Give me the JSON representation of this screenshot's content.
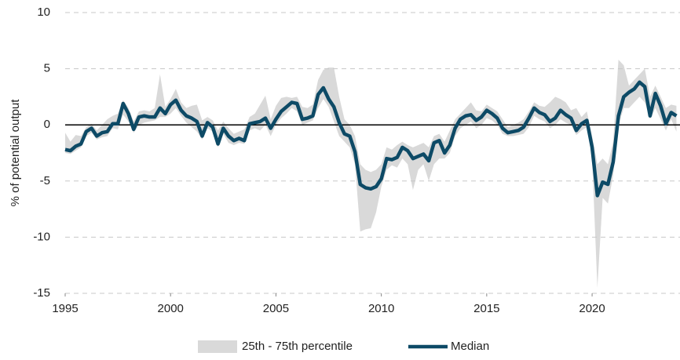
{
  "chart_data": {
    "type": "line",
    "y_label": "% of potential output",
    "x": [
      1995,
      1995.25,
      1995.5,
      1995.75,
      1996,
      1996.25,
      1996.5,
      1996.75,
      1997,
      1997.25,
      1997.5,
      1997.75,
      1998,
      1998.25,
      1998.5,
      1998.75,
      1999,
      1999.25,
      1999.5,
      1999.75,
      2000,
      2000.25,
      2000.5,
      2000.75,
      2001,
      2001.25,
      2001.5,
      2001.75,
      2002,
      2002.25,
      2002.5,
      2002.75,
      2003,
      2003.25,
      2003.5,
      2003.75,
      2004,
      2004.25,
      2004.5,
      2004.75,
      2005,
      2005.25,
      2005.5,
      2005.75,
      2006,
      2006.25,
      2006.5,
      2006.75,
      2007,
      2007.25,
      2007.5,
      2007.75,
      2008,
      2008.25,
      2008.5,
      2008.75,
      2009,
      2009.25,
      2009.5,
      2009.75,
      2010,
      2010.25,
      2010.5,
      2010.75,
      2011,
      2011.25,
      2011.5,
      2011.75,
      2012,
      2012.25,
      2012.5,
      2012.75,
      2013,
      2013.25,
      2013.5,
      2013.75,
      2014,
      2014.25,
      2014.5,
      2014.75,
      2015,
      2015.25,
      2015.5,
      2015.75,
      2016,
      2016.25,
      2016.5,
      2016.75,
      2017,
      2017.25,
      2017.5,
      2017.75,
      2018,
      2018.25,
      2018.5,
      2018.75,
      2019,
      2019.25,
      2019.5,
      2019.75,
      2020,
      2020.25,
      2020.5,
      2020.75,
      2021,
      2021.25,
      2021.5,
      2021.75,
      2022,
      2022.25,
      2022.5,
      2022.75,
      2023,
      2023.25,
      2023.5,
      2023.75,
      2024
    ],
    "band": {
      "name": "25th - 75th percentile",
      "color": "#d9d9d9",
      "low": [
        -2.5,
        -2.6,
        -2.3,
        -2.0,
        -1.0,
        -0.7,
        -1.3,
        -1.1,
        -1.0,
        -0.3,
        -0.4,
        0.9,
        0.3,
        -0.7,
        0.0,
        0.2,
        0.3,
        0.4,
        0.7,
        0.7,
        1.0,
        1.5,
        0.8,
        0.2,
        -0.2,
        -0.6,
        -1.3,
        -0.3,
        -0.6,
        -2.0,
        -0.8,
        -1.6,
        -1.8,
        -1.6,
        -1.7,
        -0.5,
        -0.3,
        -0.5,
        0.0,
        -1.0,
        0.0,
        0.6,
        1.0,
        1.5,
        1.2,
        0.0,
        0.2,
        0.4,
        1.5,
        2.3,
        1.6,
        0.3,
        -1.0,
        -1.5,
        -2.0,
        -3.5,
        -9.5,
        -9.3,
        -9.2,
        -7.8,
        -5.5,
        -4.0,
        -3.6,
        -3.8,
        -3.0,
        -3.5,
        -5.8,
        -4.0,
        -3.5,
        -5.0,
        -3.5,
        -3.0,
        -3.0,
        -2.5,
        -1.0,
        -0.3,
        0.0,
        0.3,
        -0.3,
        0.0,
        0.6,
        0.4,
        0.0,
        -0.8,
        -1.0,
        -1.0,
        -0.9,
        -0.8,
        -0.2,
        0.8,
        0.5,
        0.3,
        -0.3,
        0.0,
        0.5,
        0.2,
        0.0,
        -0.9,
        -0.5,
        -0.2,
        -3.0,
        -14.5,
        -6.5,
        -7.0,
        -4.5,
        0.0,
        1.5,
        1.5,
        2.0,
        2.5,
        2.0,
        0.5,
        1.5,
        0.5,
        -0.5,
        0.5,
        -0.6
      ],
      "high": [
        -0.7,
        -1.5,
        -0.9,
        -1.0,
        -0.2,
        0.1,
        -0.5,
        0.0,
        0.5,
        0.8,
        1.0,
        2.2,
        1.5,
        0.3,
        1.2,
        1.3,
        1.2,
        1.5,
        4.5,
        1.6,
        2.3,
        3.2,
        2.0,
        1.5,
        1.7,
        1.8,
        0.4,
        0.7,
        0.4,
        -0.5,
        0.3,
        -0.3,
        -0.8,
        -0.6,
        -0.4,
        0.7,
        1.0,
        1.8,
        2.6,
        0.5,
        1.7,
        2.4,
        2.5,
        2.4,
        2.5,
        1.6,
        1.5,
        1.8,
        4.0,
        4.9,
        5.1,
        5.1,
        2.5,
        0.5,
        0.0,
        -1.0,
        -3.5,
        -4.0,
        -4.2,
        -4.0,
        -3.5,
        -2.0,
        -2.2,
        -1.8,
        -1.5,
        -1.8,
        -2.0,
        -1.8,
        -1.6,
        -2.0,
        -1.0,
        -0.8,
        -1.5,
        -0.5,
        0.5,
        1.0,
        1.5,
        2.0,
        1.3,
        1.2,
        1.8,
        1.5,
        1.2,
        0.5,
        -0.2,
        0.0,
        0.2,
        0.5,
        1.2,
        2.0,
        1.7,
        1.6,
        2.0,
        2.5,
        2.3,
        2.0,
        1.3,
        1.5,
        0.7,
        1.2,
        -1.0,
        -3.5,
        -3.0,
        -3.5,
        -1.5,
        5.8,
        5.3,
        3.5,
        4.0,
        4.5,
        5.0,
        2.5,
        3.5,
        2.5,
        1.5,
        1.8,
        1.7
      ]
    },
    "series": [
      {
        "name": "Median",
        "color": "#0d4a66",
        "values": [
          -2.2,
          -2.3,
          -1.9,
          -1.7,
          -0.6,
          -0.3,
          -1.0,
          -0.7,
          -0.6,
          0.1,
          0.1,
          1.9,
          1.0,
          -0.4,
          0.7,
          0.8,
          0.7,
          0.7,
          1.5,
          1.0,
          1.8,
          2.2,
          1.3,
          0.8,
          0.6,
          0.3,
          -1.0,
          0.2,
          -0.2,
          -1.7,
          -0.3,
          -1.0,
          -1.4,
          -1.2,
          -1.4,
          0.1,
          0.2,
          0.3,
          0.6,
          -0.3,
          0.5,
          1.2,
          1.6,
          2.0,
          1.9,
          0.5,
          0.6,
          0.8,
          2.7,
          3.3,
          2.3,
          1.6,
          0.2,
          -0.8,
          -1.0,
          -2.4,
          -5.3,
          -5.6,
          -5.7,
          -5.5,
          -4.8,
          -3.0,
          -3.1,
          -2.9,
          -2.0,
          -2.3,
          -3.0,
          -2.8,
          -2.6,
          -3.2,
          -1.6,
          -1.4,
          -2.5,
          -1.8,
          -0.3,
          0.5,
          0.8,
          0.9,
          0.4,
          0.7,
          1.3,
          1.0,
          0.6,
          -0.3,
          -0.7,
          -0.6,
          -0.5,
          -0.2,
          0.6,
          1.5,
          1.1,
          0.9,
          0.3,
          0.6,
          1.3,
          0.9,
          0.6,
          -0.5,
          0.1,
          0.4,
          -2.0,
          -6.3,
          -5.1,
          -5.3,
          -3.3,
          0.8,
          2.5,
          2.9,
          3.2,
          3.8,
          3.4,
          0.8,
          2.8,
          1.7,
          0.1,
          1.1,
          0.8
        ]
      }
    ],
    "xlim": [
      1995,
      2024.17
    ],
    "xticks": [
      1995,
      2000,
      2005,
      2010,
      2015,
      2020
    ],
    "ylim": [
      -15,
      10
    ],
    "yticks": [
      -15,
      -10,
      -5,
      0,
      5,
      10
    ],
    "grid": true,
    "legend": "bottom"
  }
}
